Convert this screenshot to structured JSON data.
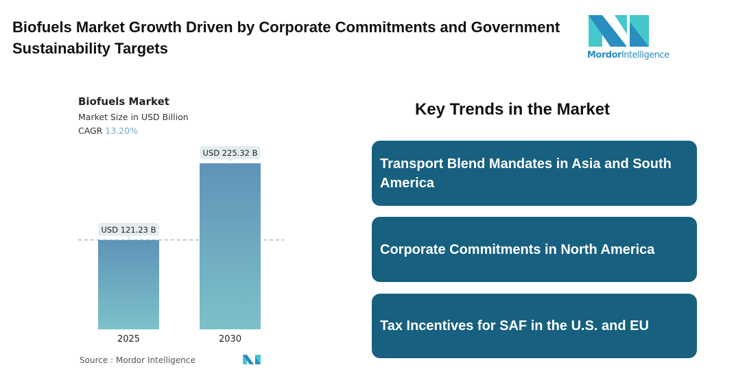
{
  "title": "Biofuels Market Growth Driven by Corporate Commitments and Government Sustainability Targets",
  "logo": {
    "text_bold": "Mordor",
    "text_regular": "Intelligence"
  },
  "chart_data": {
    "type": "bar",
    "title": "Biofuels Market",
    "subtitle": "Market Size in USD Billion",
    "cagr_label": "CAGR",
    "cagr_value": "13.20%",
    "categories": [
      "2025",
      "2030"
    ],
    "values": [
      121.23,
      225.32
    ],
    "data_labels": [
      "USD 121.23 B",
      "USD 225.32 B"
    ],
    "ylim": [
      0,
      225.32
    ],
    "reference_line": 121.23,
    "grid": false,
    "colors": {
      "bar_top": "#5f93b8",
      "bar_bottom": "#7dc1c9",
      "label_bg": "#e3ecef",
      "dash": "#6f9ec2"
    }
  },
  "source": "Source :  Mordor Intelligence",
  "trends": {
    "heading": "Key Trends in the Market",
    "items": [
      "Transport Blend Mandates in Asia and South America",
      "Corporate Commitments in North America",
      "Tax Incentives for SAF in the U.S. and EU"
    ],
    "color": "#17607f"
  }
}
